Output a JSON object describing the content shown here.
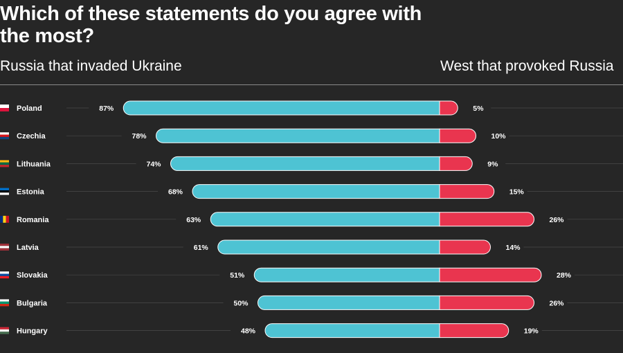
{
  "header": {
    "title": "Which of these statements do you agree with the most?",
    "left_label": "Russia that invaded Ukraine",
    "right_label": "West that provoked Russia"
  },
  "colors": {
    "background": "#262626",
    "left_series": "#4ec3d3",
    "right_series": "#e9354f",
    "gridline": "#4a4a4a"
  },
  "chart_data": {
    "type": "bar",
    "orientation": "horizontal-diverging",
    "categories": [
      "Poland",
      "Czechia",
      "Lithuania",
      "Estonia",
      "Romania",
      "Latvia",
      "Slovakia",
      "Bulgaria",
      "Hungary"
    ],
    "series": [
      {
        "values": [
          87,
          78,
          74,
          68,
          63,
          61,
          51,
          50,
          48
        ],
        "color": "#4ec3d3"
      },
      {
        "values": [
          5,
          10,
          9,
          15,
          26,
          14,
          28,
          26,
          19
        ],
        "color": "#e9354f"
      }
    ],
    "value_labels_left": [
      "87%",
      "78%",
      "74%",
      "68%",
      "63%",
      "61%",
      "51%",
      "50%",
      "48%"
    ],
    "value_labels_right": [
      "5%",
      "10%",
      "9%",
      "15%",
      "26%",
      "14%",
      "28%",
      "26%",
      "19%"
    ],
    "flags": [
      [
        "#ffffff",
        "#dc143c"
      ],
      [
        "#ffffff",
        "#d7141a",
        "#11457e"
      ],
      [
        "#fdb913",
        "#006a44",
        "#c1272d"
      ],
      [
        "#0072ce",
        "#000000",
        "#ffffff"
      ],
      [
        "#002b7f",
        "#fcd116",
        "#ce1126"
      ],
      [
        "#9e3039",
        "#ffffff",
        "#9e3039"
      ],
      [
        "#ffffff",
        "#0b4ea2",
        "#ee1c25"
      ],
      [
        "#ffffff",
        "#00966e",
        "#d62612"
      ],
      [
        "#ce2939",
        "#ffffff",
        "#477050"
      ]
    ],
    "legend": "none",
    "grid": true
  }
}
